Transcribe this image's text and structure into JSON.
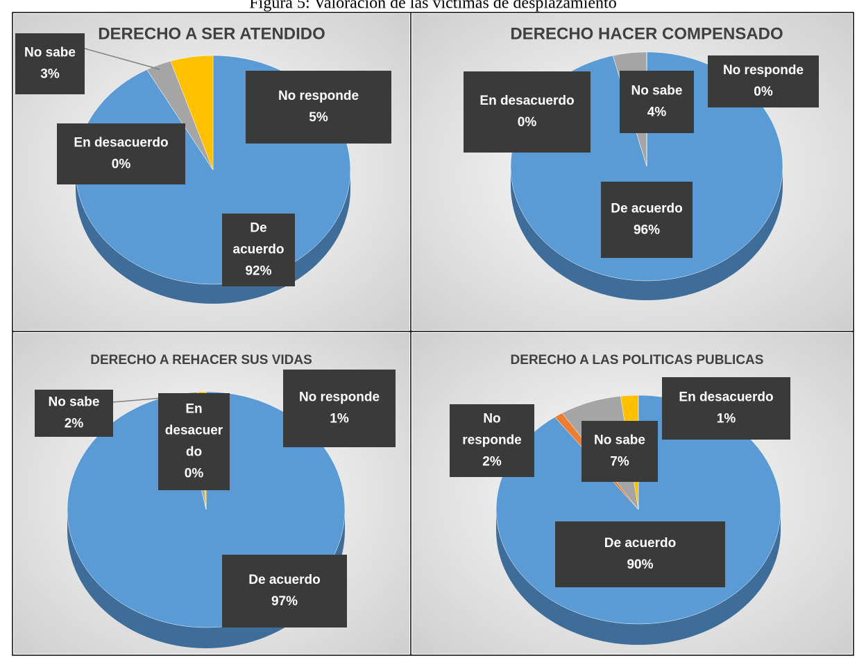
{
  "caption": "Figura 5: Valoración  de las víctimas de desplazamiento",
  "chart_data": [
    {
      "type": "pie",
      "title": "DERECHO A SER ATENDIDO",
      "categories": [
        "De acuerdo",
        "En desacuerdo",
        "No sabe",
        "No responde"
      ],
      "values": [
        92,
        0,
        3,
        5
      ],
      "value_labels": [
        "92%",
        "0%",
        "3%",
        "5%"
      ],
      "colors": [
        "#5b9bd5",
        "#ed7d31",
        "#a5a5a5",
        "#ffc000"
      ]
    },
    {
      "type": "pie",
      "title": "DERECHO HACER COMPENSADO",
      "categories": [
        "De acuerdo",
        "En desacuerdo",
        "No sabe",
        "No responde"
      ],
      "values": [
        96,
        0,
        4,
        0
      ],
      "value_labels": [
        "96%",
        "0%",
        "4%",
        "0%"
      ],
      "colors": [
        "#5b9bd5",
        "#ed7d31",
        "#a5a5a5",
        "#ffc000"
      ]
    },
    {
      "type": "pie",
      "title": "DERECHO A REHACER SUS VIDAS",
      "categories": [
        "De acuerdo",
        "En desacuerdo",
        "No sabe",
        "No responde"
      ],
      "values": [
        97,
        0,
        2,
        1
      ],
      "value_labels": [
        "97%",
        "0%",
        "2%",
        "1%"
      ],
      "colors": [
        "#5b9bd5",
        "#ed7d31",
        "#a5a5a5",
        "#ffc000"
      ]
    },
    {
      "type": "pie",
      "title": "DERECHO A LAS POLITICAS PUBLICAS",
      "categories": [
        "De acuerdo",
        "En desacuerdo",
        "No sabe",
        "No responde"
      ],
      "values": [
        90,
        1,
        7,
        2
      ],
      "value_labels": [
        "90%",
        "1%",
        "7%",
        "2%"
      ],
      "colors": [
        "#5b9bd5",
        "#ed7d31",
        "#a5a5a5",
        "#ffc000"
      ]
    }
  ]
}
